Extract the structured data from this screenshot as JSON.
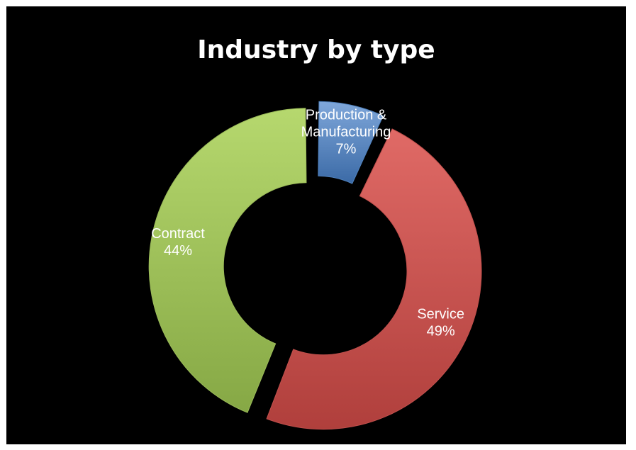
{
  "chart_data": {
    "type": "pie",
    "title": "Industry by type",
    "categories": [
      "Production & Manufacturing",
      "Service",
      "Contract"
    ],
    "values": [
      7,
      49,
      44
    ],
    "value_labels": [
      "7%",
      "49%",
      "44%"
    ],
    "colors": [
      "#4F81BD",
      "#C0504D",
      "#9BBB59"
    ],
    "label_lines": [
      [
        "Production &",
        "Manufacturing",
        "7%"
      ],
      [
        "Service",
        "49%"
      ],
      [
        "Contract",
        "44%"
      ]
    ],
    "style": "doughnut",
    "legend": "none"
  }
}
